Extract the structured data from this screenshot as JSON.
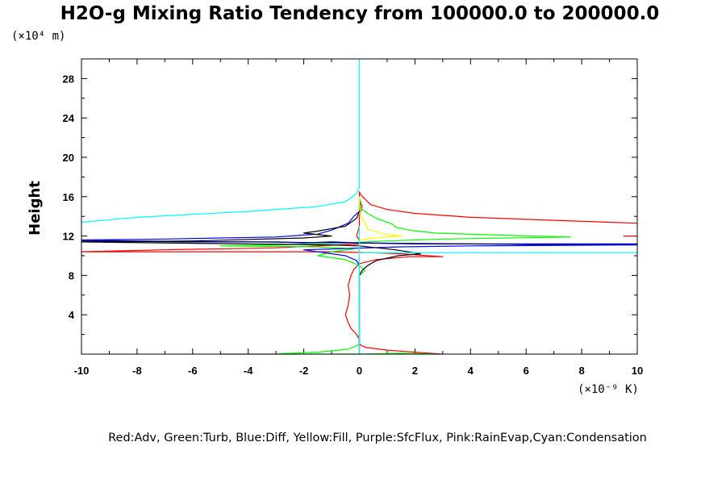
{
  "chart_data": {
    "type": "line",
    "title": "H2O-g Mixing Ratio Tendency from 100000.0 to 200000.0",
    "ylabel": "Height",
    "y_unit": "(×10⁴ m)",
    "x_unit": "(×10⁻⁹ K)",
    "xlim": [
      -10,
      10
    ],
    "ylim": [
      0,
      30
    ],
    "x_ticks": [
      -10,
      -8,
      -6,
      -4,
      -2,
      0,
      2,
      4,
      6,
      8,
      10
    ],
    "y_ticks": [
      4,
      8,
      12,
      16,
      20,
      24,
      28
    ],
    "x_tick_labels": [
      "-10",
      "-8",
      "-6",
      "-4",
      "-2",
      "0",
      "2",
      "4",
      "6",
      "8",
      "10"
    ],
    "y_tick_labels": [
      "4",
      "8",
      "12",
      "16",
      "20",
      "24",
      "28"
    ],
    "legend_text": "Red:Adv, Green:Turb, Blue:Diff, Yellow:Fill, Purple:SfcFlux, Pink:RainEvap,Cyan:Condensation",
    "grid": false,
    "series": [
      {
        "color": "#ff0000",
        "points": [
          [
            10,
            13.3
          ],
          [
            7,
            13.6
          ],
          [
            4,
            13.9
          ],
          [
            2,
            14.3
          ],
          [
            1,
            14.7
          ],
          [
            0.4,
            15.2
          ],
          [
            0.05,
            16.2
          ],
          [
            0,
            16.5
          ],
          [
            0,
            15.8
          ],
          [
            0.1,
            15
          ],
          [
            0,
            14
          ],
          [
            0,
            13
          ],
          [
            -0.1,
            12
          ],
          [
            0,
            11.6
          ],
          [
            0,
            11.2
          ],
          [
            -3,
            10.8
          ],
          [
            -7,
            10.6
          ],
          [
            -10,
            10.4
          ],
          [
            -1,
            10.4
          ],
          [
            0.5,
            10.3
          ],
          [
            1.5,
            10.2
          ],
          [
            3,
            9.9
          ],
          [
            1.8,
            9.9
          ],
          [
            0.6,
            9.6
          ],
          [
            0,
            9.2
          ],
          [
            -0.2,
            8.6
          ],
          [
            -0.3,
            8
          ],
          [
            -0.4,
            7
          ],
          [
            -0.35,
            6
          ],
          [
            -0.4,
            5
          ],
          [
            -0.5,
            4
          ],
          [
            -0.4,
            3.2
          ],
          [
            -0.3,
            2.6
          ],
          [
            -0.1,
            2
          ],
          [
            0,
            1.5
          ],
          [
            0,
            1
          ],
          [
            0.2,
            0.7
          ],
          [
            1,
            0.4
          ],
          [
            2.5,
            0.1
          ],
          [
            3,
            0
          ]
        ]
      },
      {
        "color": "#ff0000",
        "points": [
          [
            9.5,
            12.0
          ],
          [
            10,
            12.0
          ]
        ]
      },
      {
        "color": "#00ff00",
        "points": [
          [
            0,
            16
          ],
          [
            0.05,
            14.8
          ],
          [
            0.3,
            14.3
          ],
          [
            0.6,
            13.8
          ],
          [
            1.2,
            13.2
          ],
          [
            1.3,
            12.9
          ],
          [
            1.8,
            12.6
          ],
          [
            2.7,
            12.3
          ],
          [
            5,
            12.1
          ],
          [
            7.6,
            11.9
          ],
          [
            3,
            11.7
          ],
          [
            1,
            11.5
          ],
          [
            -0.5,
            11.3
          ],
          [
            -3,
            11.1
          ],
          [
            -5,
            11.0
          ],
          [
            -1.5,
            10.9
          ],
          [
            -0.2,
            10.7
          ],
          [
            -1,
            10.4
          ],
          [
            -1.5,
            10.0
          ],
          [
            -0.5,
            9.6
          ],
          [
            0,
            9.0
          ],
          [
            0.2,
            8.5
          ],
          [
            0,
            8
          ],
          [
            0,
            5
          ],
          [
            0,
            2
          ],
          [
            0,
            1
          ],
          [
            -0.4,
            0.5
          ],
          [
            -1.5,
            0.2
          ],
          [
            -2.8,
            0.05
          ],
          [
            -3,
            0
          ],
          [
            -1,
            0
          ],
          [
            0,
            0
          ],
          [
            1.5,
            0.1
          ],
          [
            2.8,
            0
          ]
        ]
      },
      {
        "color": "#0000ff",
        "points": [
          [
            0,
            15.6
          ],
          [
            0,
            14.5
          ],
          [
            -0.2,
            14.0
          ],
          [
            -0.4,
            13.3
          ],
          [
            -1,
            12.6
          ],
          [
            -1.5,
            12.2
          ],
          [
            -3,
            11.9
          ],
          [
            -7,
            11.7
          ],
          [
            -10,
            11.6
          ],
          [
            -8,
            11.5
          ],
          [
            -4,
            11.4
          ],
          [
            0,
            11.3
          ],
          [
            4,
            11.2
          ],
          [
            8,
            11.1
          ],
          [
            10,
            11.1
          ],
          [
            4,
            11.0
          ],
          [
            1.5,
            10.9
          ],
          [
            -2,
            10.6
          ],
          [
            -0.5,
            10.0
          ],
          [
            -0.1,
            9.5
          ],
          [
            0,
            9.0
          ],
          [
            0,
            8
          ],
          [
            0,
            4
          ],
          [
            0,
            1
          ],
          [
            0,
            0
          ]
        ]
      },
      {
        "color": "#000080",
        "points": [
          [
            -10,
            11.5
          ],
          [
            -6,
            11.4
          ],
          [
            -3,
            11.4
          ],
          [
            -2,
            11.3
          ],
          [
            -1,
            11.4
          ],
          [
            0,
            11.3
          ],
          [
            2,
            11.2
          ],
          [
            6,
            11.2
          ],
          [
            10,
            11.2
          ]
        ]
      },
      {
        "color": "#000000",
        "points": [
          [
            0,
            15.4
          ],
          [
            0,
            14.5
          ],
          [
            -0.1,
            13.8
          ],
          [
            -0.5,
            13.0
          ],
          [
            -1.5,
            12.5
          ],
          [
            -2,
            12.3
          ],
          [
            -1,
            12.0
          ],
          [
            -2,
            11.8
          ],
          [
            -6,
            11.5
          ],
          [
            -10,
            11.4
          ],
          [
            -4,
            11.2
          ],
          [
            -1,
            11.1
          ],
          [
            0,
            11.0
          ],
          [
            1.3,
            10.6
          ],
          [
            2.2,
            10.2
          ],
          [
            1.4,
            10.0
          ],
          [
            0.6,
            9.5
          ],
          [
            0.3,
            9.0
          ],
          [
            0.1,
            8.5
          ],
          [
            0,
            8
          ],
          [
            0,
            5
          ],
          [
            0,
            2
          ],
          [
            0,
            0
          ]
        ]
      },
      {
        "color": "#ffff00",
        "points": [
          [
            0,
            16
          ],
          [
            0,
            15
          ],
          [
            0.05,
            14
          ],
          [
            0.2,
            13.4
          ],
          [
            0.3,
            12.7
          ],
          [
            0.9,
            12.2
          ],
          [
            1.5,
            12.0
          ],
          [
            0.5,
            11.8
          ],
          [
            0,
            11.6
          ]
        ]
      },
      {
        "color": "#00ffff",
        "points": [
          [
            0,
            30
          ],
          [
            0,
            17
          ],
          [
            -0.1,
            16.3
          ],
          [
            -0.5,
            15.5
          ],
          [
            -1.5,
            15.0
          ],
          [
            -4,
            14.5
          ],
          [
            -8,
            13.9
          ],
          [
            -10,
            13.4
          ]
        ]
      },
      {
        "color": "#00ffff",
        "points": [
          [
            0,
            13
          ],
          [
            0,
            12
          ],
          [
            0,
            11
          ],
          [
            0,
            10.3
          ],
          [
            2,
            10.3
          ],
          [
            6,
            10.3
          ],
          [
            10,
            10.3
          ]
        ]
      },
      {
        "color": "#00ffff",
        "points": [
          [
            0,
            10.2
          ],
          [
            0,
            8
          ],
          [
            0,
            4
          ],
          [
            0,
            0.5
          ],
          [
            0,
            0
          ]
        ]
      },
      {
        "color": "#ff00ff",
        "points": [
          [
            -5,
            0
          ],
          [
            -3,
            0
          ]
        ]
      }
    ]
  }
}
